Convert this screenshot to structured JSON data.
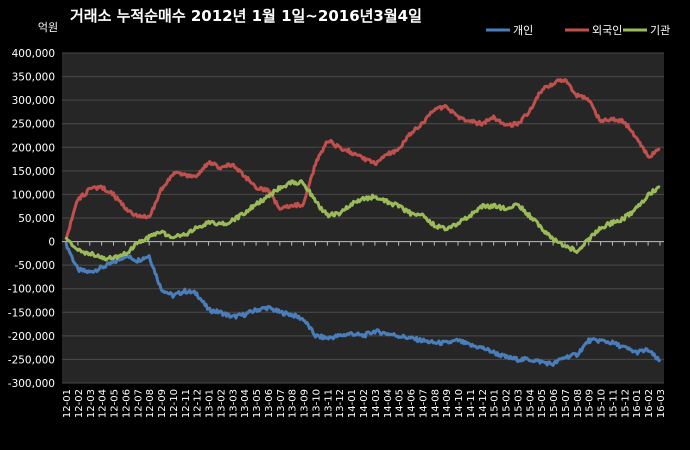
{
  "chart_data": {
    "type": "line",
    "title": "거래소 누적순매수 2012년 1월 1일~2016년3월4일",
    "unit_label": "억원",
    "ylim": [
      -300000,
      400000
    ],
    "y_ticks": [
      "400,000",
      "350,000",
      "300,000",
      "250,000",
      "200,000",
      "150,000",
      "100,000",
      "50,000",
      "0",
      "-50,000",
      "-100,000",
      "-150,000",
      "-200,000",
      "-250,000",
      "-300,000"
    ],
    "categories": [
      "12-01",
      "12-02",
      "12-03",
      "12-04",
      "12-05",
      "12-06",
      "12-07",
      "12-08",
      "12-09",
      "12-10",
      "12-11",
      "12-12",
      "13-01",
      "13-02",
      "13-03",
      "13-04",
      "13-05",
      "13-06",
      "13-07",
      "13-08",
      "13-09",
      "13-10",
      "13-11",
      "13-12",
      "14-01",
      "14-02",
      "14-03",
      "14-04",
      "14-05",
      "14-06",
      "14-07",
      "14-08",
      "14-09",
      "14-10",
      "14-11",
      "14-12",
      "15-01",
      "15-02",
      "15-03",
      "15-04",
      "15-05",
      "15-06",
      "15-07",
      "15-08",
      "15-09",
      "15-10",
      "15-11",
      "15-12",
      "16-01",
      "16-02",
      "16-03"
    ],
    "legend_position": "top-right",
    "grid": true,
    "series": [
      {
        "name": "개인",
        "color": "#4a7ebb",
        "values": [
          -5000,
          -60000,
          -65000,
          -55000,
          -45000,
          -30000,
          -40000,
          -30000,
          -100000,
          -115000,
          -105000,
          -110000,
          -145000,
          -150000,
          -160000,
          -155000,
          -145000,
          -140000,
          -150000,
          -155000,
          -165000,
          -200000,
          -205000,
          -200000,
          -195000,
          -200000,
          -190000,
          -195000,
          -200000,
          -205000,
          -210000,
          -215000,
          -215000,
          -210000,
          -220000,
          -225000,
          -235000,
          -245000,
          -250000,
          -250000,
          -255000,
          -260000,
          -245000,
          -240000,
          -210000,
          -210000,
          -215000,
          -225000,
          -235000,
          -230000,
          -255000
        ]
      },
      {
        "name": "외국인",
        "color": "#c0504d",
        "values": [
          5000,
          90000,
          110000,
          115000,
          100000,
          70000,
          55000,
          50000,
          110000,
          145000,
          140000,
          135000,
          170000,
          155000,
          165000,
          140000,
          115000,
          110000,
          70000,
          75000,
          80000,
          165000,
          215000,
          200000,
          190000,
          175000,
          165000,
          185000,
          195000,
          230000,
          250000,
          280000,
          285000,
          265000,
          255000,
          250000,
          265000,
          245000,
          250000,
          275000,
          320000,
          335000,
          345000,
          310000,
          300000,
          255000,
          260000,
          255000,
          220000,
          180000,
          195000
        ]
      },
      {
        "name": "기관",
        "color": "#9bbb59",
        "values": [
          5000,
          -20000,
          -25000,
          -35000,
          -35000,
          -25000,
          -5000,
          10000,
          20000,
          10000,
          15000,
          30000,
          40000,
          35000,
          45000,
          60000,
          80000,
          95000,
          115000,
          125000,
          125000,
          85000,
          55000,
          60000,
          80000,
          90000,
          95000,
          85000,
          75000,
          60000,
          55000,
          35000,
          25000,
          40000,
          55000,
          75000,
          75000,
          70000,
          80000,
          55000,
          30000,
          5000,
          -10000,
          -20000,
          5000,
          30000,
          40000,
          50000,
          70000,
          100000,
          115000
        ]
      }
    ]
  }
}
